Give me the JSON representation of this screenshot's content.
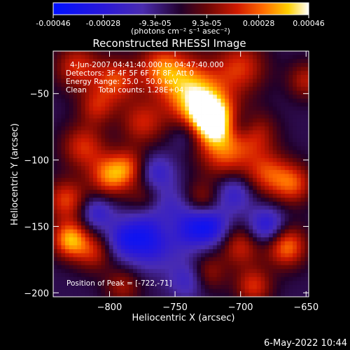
{
  "colorbar": {
    "tick_labels": [
      "-0.00046",
      "-0.00028",
      "-9.3e-05",
      "9.3e-05",
      "0.00028",
      "0.00046"
    ],
    "tick_values": [
      -0.00046,
      -0.00028,
      -9.3e-05,
      9.3e-05,
      0.00028,
      0.00046
    ],
    "range": [
      -0.00046,
      0.00046
    ],
    "unit_label": "(photons cm⁻² s⁻¹ asec⁻²)",
    "colormap": "RHESSI blue-purple-red-yellow-white"
  },
  "chart_data": {
    "type": "heatmap",
    "title": "Reconstructed RHESSI Image",
    "xlabel": "Heliocentric X (arcsec)",
    "ylabel": "Heliocentric Y (arcsec)",
    "xlim": [
      -843,
      -648
    ],
    "ylim": [
      -203,
      -18
    ],
    "x_ticks": [
      -800,
      -750,
      -700,
      -650
    ],
    "x_tick_labels": [
      "−800",
      "−750",
      "−700",
      "−650"
    ],
    "y_ticks": [
      -50,
      -100,
      -150,
      -200
    ],
    "y_tick_labels": [
      "−50",
      "−100",
      "−150",
      "−200"
    ],
    "annotations": [
      "4-Jun-2007 04:41:40.000 to 04:47:40.000",
      "Detectors: 3F 4F 5F 6F 7F 8F, Att 0",
      "Energy Range: 25.0 - 50.0 keV",
      "Clean     Total counts: 1.28E+04",
      "Position of Peak = [-722,-71]"
    ],
    "peak": {
      "x": -722,
      "y": -71
    },
    "hotspots": [
      {
        "x": -722,
        "y": -71,
        "v": 1.0,
        "r": 12
      },
      {
        "x": -730,
        "y": -58,
        "v": 0.75,
        "r": 16
      },
      {
        "x": -712,
        "y": -95,
        "v": 0.6,
        "r": 14
      },
      {
        "x": -745,
        "y": -40,
        "v": 0.55,
        "r": 16
      },
      {
        "x": -762,
        "y": -30,
        "v": 0.5,
        "r": 12
      },
      {
        "x": -795,
        "y": -40,
        "v": 0.6,
        "r": 12
      },
      {
        "x": -825,
        "y": -30,
        "v": 0.55,
        "r": 12
      },
      {
        "x": -810,
        "y": -60,
        "v": 0.45,
        "r": 10
      },
      {
        "x": -775,
        "y": -72,
        "v": 0.5,
        "r": 12
      },
      {
        "x": -820,
        "y": -90,
        "v": 0.55,
        "r": 12
      },
      {
        "x": -800,
        "y": -112,
        "v": 0.7,
        "r": 11
      },
      {
        "x": -785,
        "y": -105,
        "v": 0.5,
        "r": 10
      },
      {
        "x": -833,
        "y": -130,
        "v": 0.6,
        "r": 11
      },
      {
        "x": -830,
        "y": -160,
        "v": 0.85,
        "r": 10
      },
      {
        "x": -812,
        "y": -170,
        "v": 0.45,
        "r": 10
      },
      {
        "x": -770,
        "y": -130,
        "v": 0.55,
        "r": 11
      },
      {
        "x": -755,
        "y": -148,
        "v": 0.5,
        "r": 11
      },
      {
        "x": -700,
        "y": -30,
        "v": 0.55,
        "r": 14
      },
      {
        "x": -690,
        "y": -80,
        "v": 0.5,
        "r": 12
      },
      {
        "x": -680,
        "y": -110,
        "v": 0.55,
        "r": 12
      },
      {
        "x": -660,
        "y": -118,
        "v": 0.6,
        "r": 11
      },
      {
        "x": -665,
        "y": -165,
        "v": 0.75,
        "r": 11
      },
      {
        "x": -700,
        "y": -165,
        "v": 0.5,
        "r": 11
      },
      {
        "x": -690,
        "y": -195,
        "v": 0.55,
        "r": 10
      },
      {
        "x": -730,
        "y": -130,
        "v": 0.4,
        "r": 10
      },
      {
        "x": -725,
        "y": -185,
        "v": 0.4,
        "r": 10
      },
      {
        "x": -790,
        "y": -195,
        "v": 0.4,
        "r": 10
      },
      {
        "x": -650,
        "y": -40,
        "v": 0.45,
        "r": 10
      }
    ],
    "coldspots": [
      {
        "x": -770,
        "y": -158,
        "v": -0.75,
        "r": 15
      },
      {
        "x": -760,
        "y": -135,
        "v": -0.55,
        "r": 12
      },
      {
        "x": -740,
        "y": -150,
        "v": -0.6,
        "r": 12
      },
      {
        "x": -722,
        "y": -150,
        "v": -0.55,
        "r": 10
      },
      {
        "x": -680,
        "y": -150,
        "v": -0.6,
        "r": 10
      },
      {
        "x": -705,
        "y": -125,
        "v": -0.45,
        "r": 10
      },
      {
        "x": -765,
        "y": -110,
        "v": -0.45,
        "r": 10
      },
      {
        "x": -700,
        "y": -75,
        "v": -0.4,
        "r": 9
      },
      {
        "x": -740,
        "y": -80,
        "v": -0.35,
        "r": 9
      },
      {
        "x": -810,
        "y": -140,
        "v": -0.45,
        "r": 9
      },
      {
        "x": -790,
        "y": -160,
        "v": -0.35,
        "r": 9
      },
      {
        "x": -740,
        "y": -190,
        "v": -0.4,
        "r": 10
      }
    ]
  },
  "footer": {
    "timestamp": "6-May-2022 10:44"
  }
}
